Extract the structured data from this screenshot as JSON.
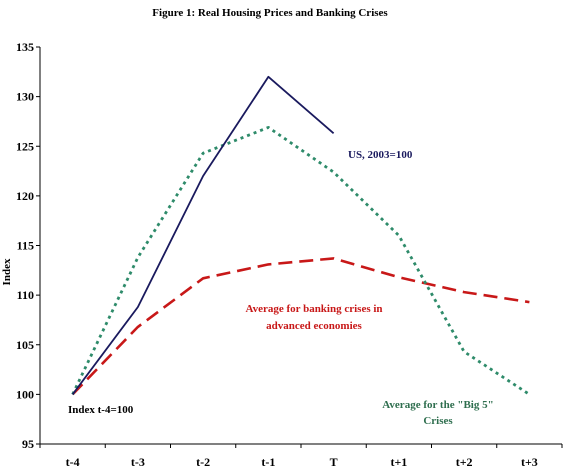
{
  "chart_data": {
    "type": "line",
    "title": "Figure 1:  Real Housing Prices and Banking Crises",
    "ylabel": "Index",
    "xlabel": "",
    "ylim": [
      95,
      135
    ],
    "yticks": [
      95,
      100,
      105,
      110,
      115,
      120,
      125,
      130,
      135
    ],
    "categories": [
      "t-4",
      "t-3",
      "t-2",
      "t-1",
      "T",
      "t+1",
      "t+2",
      "t+3"
    ],
    "grid": false,
    "series": [
      {
        "name": "US, 2003=100",
        "color": "#1a1a5e",
        "style": "solid",
        "values": [
          100.0,
          108.8,
          122.0,
          132.0,
          126.3,
          null,
          null,
          null
        ]
      },
      {
        "name": "Average for the \"Big 5\" Crises",
        "color": "#2e8b6a",
        "style": "dotted",
        "values": [
          100.0,
          113.8,
          124.3,
          126.9,
          122.4,
          116.0,
          104.3,
          100.0
        ]
      },
      {
        "name": "Average for banking crises in advanced economies",
        "color": "#c81818",
        "style": "dashed",
        "values": [
          100.0,
          106.8,
          111.7,
          113.1,
          113.7,
          111.8,
          110.3,
          109.3
        ]
      }
    ],
    "annotations": {
      "us": "US, 2003=100",
      "advanced_line1": "Average for banking crises in",
      "advanced_line2": "advanced economies",
      "big5_line1": "Average for the \"Big 5\"",
      "big5_line2": "Crises",
      "index_note": "Index t-4=100"
    }
  }
}
